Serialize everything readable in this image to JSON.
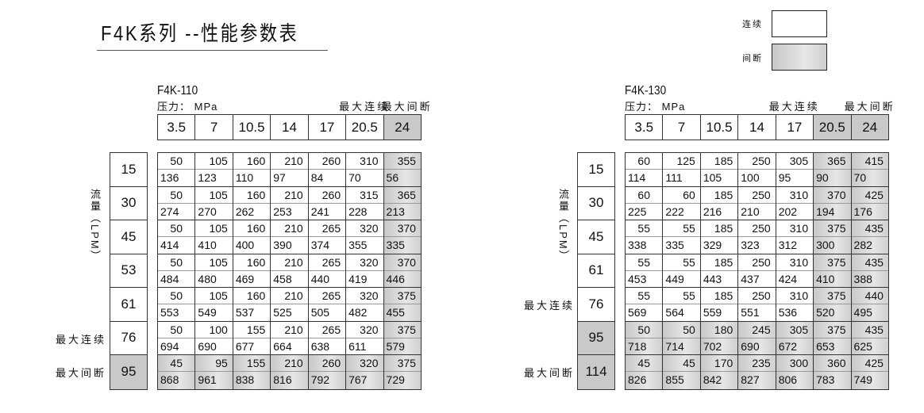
{
  "title": "F4K系列 --性能参数表",
  "legend": {
    "continuous": "连续",
    "intermittent": "间断"
  },
  "flow_axis_label": "流量（LPM）",
  "colors": {
    "shade": "#c8c8c8",
    "border": "#333333"
  },
  "tables": [
    {
      "model": "F4K-110",
      "pressure_label": "压力： MPa",
      "max_cont": "最大连续",
      "max_int": "最大间断",
      "pressures": [
        "3.5",
        "7",
        "10.5",
        "14",
        "17",
        "20.5",
        "24"
      ],
      "shaded_cols": [
        6
      ],
      "flows": [
        "15",
        "30",
        "45",
        "53",
        "61",
        "76",
        "95"
      ],
      "shaded_rows": [
        6
      ],
      "row_labels": {
        "5": "最大连续",
        "6": "最大间断"
      },
      "rows": [
        {
          "top": [
            "50",
            "105",
            "160",
            "210",
            "260",
            "310",
            "355"
          ],
          "bottom": [
            "136",
            "123",
            "110",
            "97",
            "84",
            "70",
            "56"
          ]
        },
        {
          "top": [
            "50",
            "105",
            "160",
            "210",
            "260",
            "315",
            "365"
          ],
          "bottom": [
            "274",
            "270",
            "262",
            "253",
            "241",
            "228",
            "213"
          ]
        },
        {
          "top": [
            "50",
            "105",
            "160",
            "210",
            "265",
            "320",
            "370"
          ],
          "bottom": [
            "414",
            "410",
            "400",
            "390",
            "374",
            "355",
            "335"
          ]
        },
        {
          "top": [
            "50",
            "105",
            "160",
            "210",
            "265",
            "320",
            "370"
          ],
          "bottom": [
            "484",
            "480",
            "469",
            "458",
            "440",
            "419",
            "446"
          ]
        },
        {
          "top": [
            "50",
            "105",
            "160",
            "210",
            "265",
            "320",
            "375"
          ],
          "bottom": [
            "553",
            "549",
            "537",
            "525",
            "505",
            "482",
            "455"
          ]
        },
        {
          "top": [
            "50",
            "100",
            "155",
            "210",
            "265",
            "320",
            "375"
          ],
          "bottom": [
            "694",
            "690",
            "677",
            "664",
            "638",
            "611",
            "579"
          ]
        },
        {
          "top": [
            "45",
            "95",
            "155",
            "210",
            "260",
            "320",
            "375"
          ],
          "bottom": [
            "868",
            "961",
            "838",
            "816",
            "792",
            "767",
            "729"
          ]
        }
      ]
    },
    {
      "model": "F4K-130",
      "pressure_label": "压力： MPa",
      "max_cont": "最大连续",
      "max_int": "最大间断",
      "pressures": [
        "3.5",
        "7",
        "10.5",
        "14",
        "17",
        "20.5",
        "24"
      ],
      "shaded_cols": [
        5,
        6
      ],
      "flows": [
        "15",
        "30",
        "45",
        "61",
        "76",
        "95",
        "114"
      ],
      "shaded_rows": [
        5,
        6
      ],
      "row_labels": {
        "4": "最大连续",
        "6": "最大间断"
      },
      "rows": [
        {
          "top": [
            "60",
            "125",
            "185",
            "250",
            "305",
            "365",
            "415"
          ],
          "bottom": [
            "114",
            "111",
            "105",
            "100",
            "95",
            "90",
            "70"
          ]
        },
        {
          "top": [
            "60",
            "60",
            "185",
            "250",
            "310",
            "370",
            "425"
          ],
          "bottom": [
            "225",
            "222",
            "216",
            "210",
            "202",
            "194",
            "176"
          ]
        },
        {
          "top": [
            "55",
            "55",
            "185",
            "250",
            "310",
            "375",
            "435"
          ],
          "bottom": [
            "338",
            "335",
            "329",
            "323",
            "312",
            "300",
            "282"
          ]
        },
        {
          "top": [
            "55",
            "55",
            "185",
            "250",
            "310",
            "375",
            "435"
          ],
          "bottom": [
            "453",
            "449",
            "443",
            "437",
            "424",
            "410",
            "388"
          ]
        },
        {
          "top": [
            "55",
            "55",
            "185",
            "250",
            "310",
            "375",
            "440"
          ],
          "bottom": [
            "569",
            "564",
            "559",
            "551",
            "536",
            "520",
            "495"
          ]
        },
        {
          "top": [
            "50",
            "50",
            "180",
            "245",
            "305",
            "375",
            "435"
          ],
          "bottom": [
            "718",
            "714",
            "702",
            "690",
            "672",
            "653",
            "625"
          ]
        },
        {
          "top": [
            "45",
            "45",
            "170",
            "235",
            "300",
            "360",
            "425"
          ],
          "bottom": [
            "826",
            "855",
            "842",
            "827",
            "806",
            "783",
            "749"
          ]
        }
      ]
    }
  ]
}
